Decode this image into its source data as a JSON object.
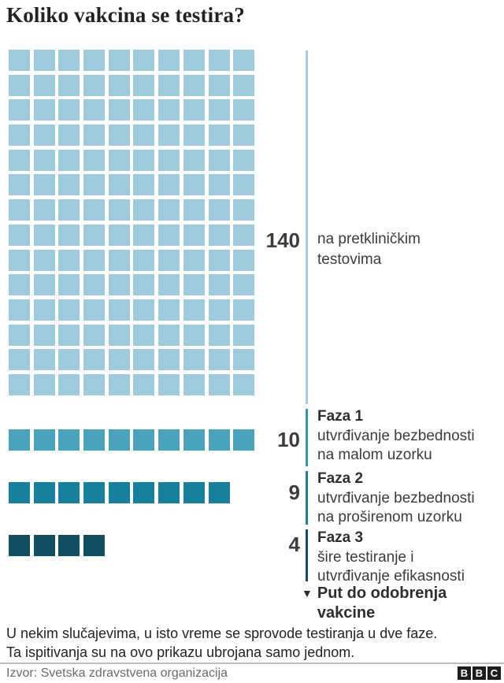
{
  "title": "Koliko vakcina se testira?",
  "chart_data": {
    "type": "waffle",
    "title": "Koliko vakcina se testira?",
    "columns_per_row": 10,
    "legend_position": "right",
    "series": [
      {
        "name": "na pretkliničkim testovima",
        "value": 140,
        "color": "#9ecbdc",
        "rail_color": "#a6cfde"
      },
      {
        "name": "Faza 1 — utvrđivanje bezbednosti na malom uzorku",
        "value": 10,
        "color": "#4aa3bc",
        "rail_color": "#2e96b3"
      },
      {
        "name": "Faza 2 — utvrđivanje bezbednosti na proširenom uzorku",
        "value": 9,
        "color": "#17809f",
        "rail_color": "#17809f"
      },
      {
        "name": "Faza 3 — šire testiranje i utvrđivanje efikasnosti",
        "value": 4,
        "color": "#114d61",
        "rail_color": "#114d61"
      }
    ],
    "axis_annotation": "▼ Put do odobrenja vakcine",
    "footnote": "U nekim slučajevima, u isto vreme se sprovode testiranja u dve faze. Ta ispitivanja su na ovo prikazu ubrojana samo jednom.",
    "source": "Izvor: Svetska zdravstvena organizacija"
  },
  "sections": {
    "preclinical": {
      "value": "140",
      "desc1": "na pretkliničkim",
      "desc2": "testovima"
    },
    "faza1": {
      "value": "10",
      "name": "Faza 1",
      "desc1": "utvrđivanje bezbednosti",
      "desc2": "na malom uzorku"
    },
    "faza2": {
      "value": "9",
      "name": "Faza 2",
      "desc1": "utvrđivanje bezbednosti",
      "desc2": "na proširenom uzorku"
    },
    "faza3": {
      "value": "4",
      "name": "Faza 3",
      "desc1": "šire testiranje i",
      "desc2": "utvrđivanje efikasnosti"
    }
  },
  "approval": {
    "marker": "▼",
    "line1": "Put do odobrenja",
    "line2": "vakcine"
  },
  "footnote": {
    "line1": "U nekim slučajevima, u isto vreme se sprovode testiranja u dve faze.",
    "line2": "Ta ispitivanja su na ovo prikazu ubrojana samo jednom."
  },
  "source": "Izvor: Svetska zdravstvena organizacija",
  "logo": {
    "letters": [
      "B",
      "B",
      "C"
    ]
  },
  "colors": {
    "preclinical": "#9ecbdc",
    "faza1": "#4aa3bc",
    "faza2": "#17809f",
    "faza3": "#114d61",
    "rail_preclinical": "#a6cfde",
    "rail_faza1": "#2e96b3",
    "rail_faza2": "#17809f",
    "rail_faza3": "#114d61"
  }
}
